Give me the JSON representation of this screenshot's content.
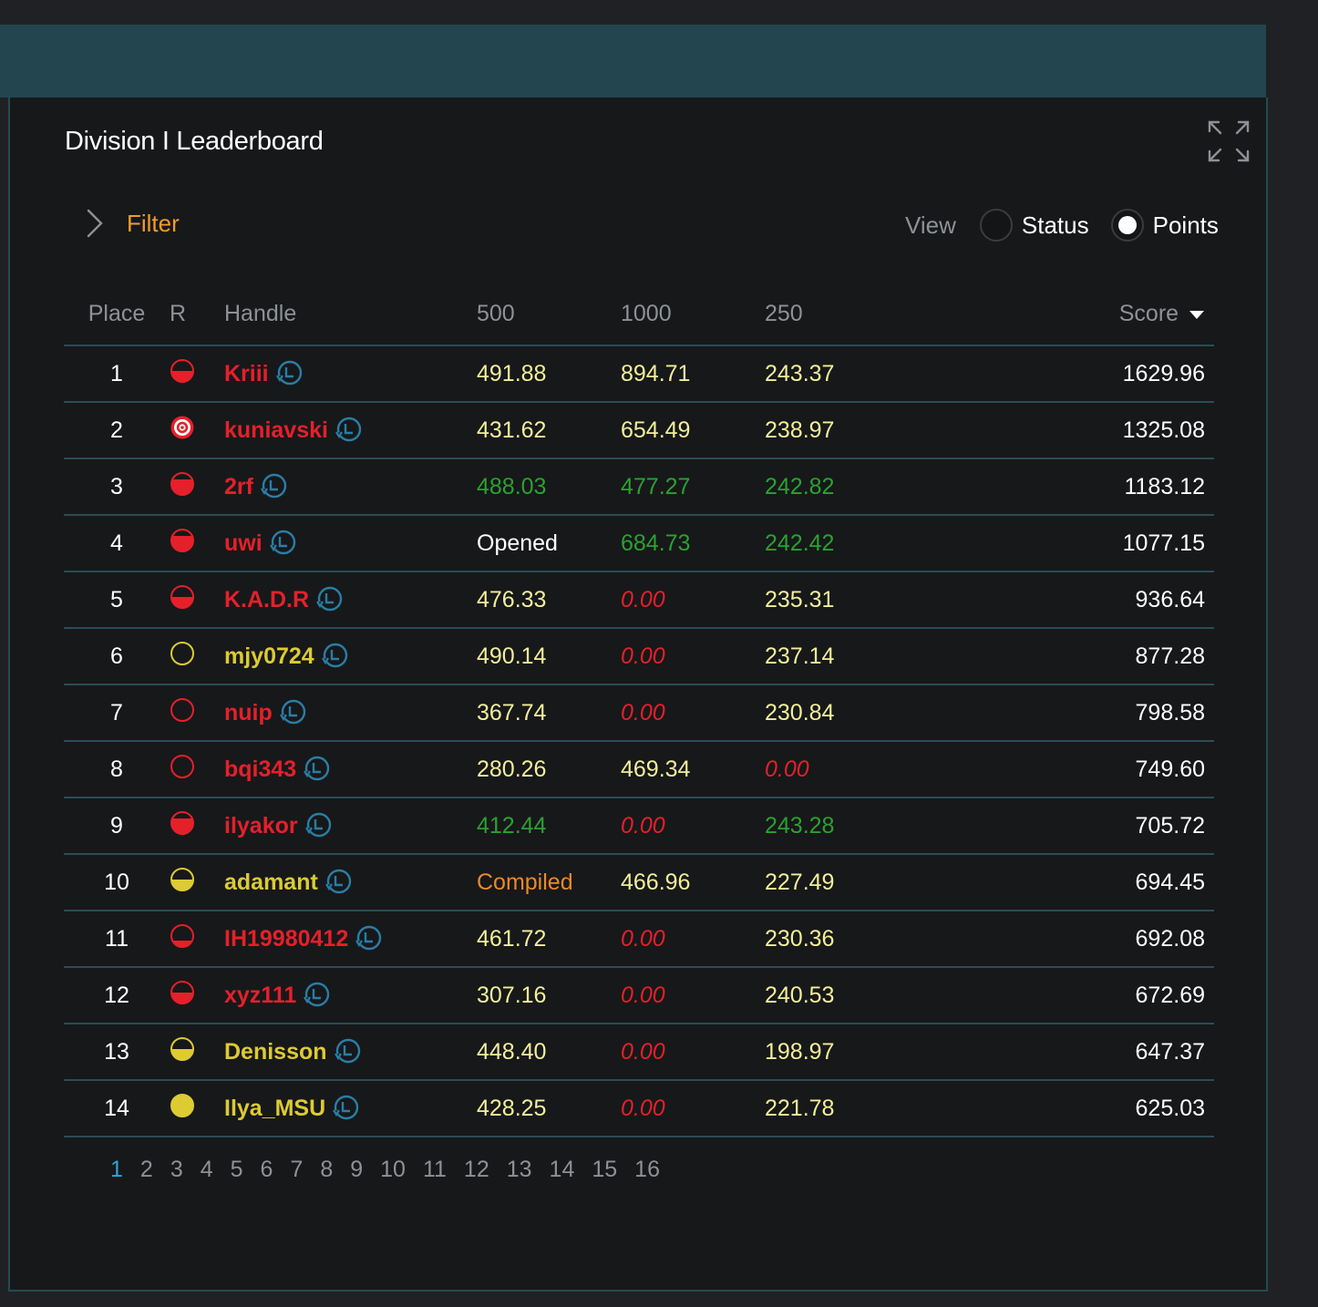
{
  "title": "Division I Leaderboard",
  "filter": {
    "label": "Filter"
  },
  "view": {
    "label": "View",
    "options": [
      {
        "label": "Status",
        "selected": false
      },
      {
        "label": "Points",
        "selected": true
      }
    ]
  },
  "table": {
    "headers": {
      "place": "Place",
      "rank": "R",
      "handle": "Handle",
      "p1": "500",
      "p2": "1000",
      "p3": "250",
      "score": "Score"
    },
    "rows": [
      {
        "place": "1",
        "rank": "red-half",
        "handle": "Kriii",
        "handle_color": "red",
        "p1": "491.88",
        "p1c": "pv",
        "p2": "894.71",
        "p2c": "pv",
        "p3": "243.37",
        "p3c": "pv",
        "score": "1629.96"
      },
      {
        "place": "2",
        "rank": "target",
        "handle": "kuniavski",
        "handle_color": "red",
        "p1": "431.62",
        "p1c": "pv",
        "p2": "654.49",
        "p2c": "pv",
        "p3": "238.97",
        "p3c": "pv",
        "score": "1325.08"
      },
      {
        "place": "3",
        "rank": "red-more",
        "handle": "2rf",
        "handle_color": "red",
        "p1": "488.03",
        "p1c": "green",
        "p2": "477.27",
        "p2c": "green",
        "p3": "242.82",
        "p3c": "green",
        "score": "1183.12"
      },
      {
        "place": "4",
        "rank": "red-more",
        "handle": "uwi",
        "handle_color": "red",
        "p1": "Opened",
        "p1c": "white",
        "p2": "684.73",
        "p2c": "green",
        "p3": "242.42",
        "p3c": "green",
        "score": "1077.15"
      },
      {
        "place": "5",
        "rank": "red-half",
        "handle": "K.A.D.R",
        "handle_color": "red",
        "p1": "476.33",
        "p1c": "pv",
        "p2": "0.00",
        "p2c": "zero",
        "p3": "235.31",
        "p3c": "pv",
        "score": "936.64"
      },
      {
        "place": "6",
        "rank": "yellow-empty",
        "handle": "mjy0724",
        "handle_color": "yellow",
        "p1": "490.14",
        "p1c": "pv",
        "p2": "0.00",
        "p2c": "zero",
        "p3": "237.14",
        "p3c": "pv",
        "score": "877.28"
      },
      {
        "place": "7",
        "rank": "red-empty",
        "handle": "nuip",
        "handle_color": "red",
        "p1": "367.74",
        "p1c": "pv",
        "p2": "0.00",
        "p2c": "zero",
        "p3": "230.84",
        "p3c": "pv",
        "score": "798.58"
      },
      {
        "place": "8",
        "rank": "red-empty",
        "handle": "bqi343",
        "handle_color": "red",
        "p1": "280.26",
        "p1c": "pv",
        "p2": "469.34",
        "p2c": "pv",
        "p3": "0.00",
        "p3c": "zero",
        "score": "749.60"
      },
      {
        "place": "9",
        "rank": "red-more",
        "handle": "ilyakor",
        "handle_color": "red",
        "p1": "412.44",
        "p1c": "green",
        "p2": "0.00",
        "p2c": "zero",
        "p3": "243.28",
        "p3c": "green",
        "score": "705.72"
      },
      {
        "place": "10",
        "rank": "yellow-half",
        "handle": "adamant",
        "handle_color": "yellow",
        "p1": "Compiled",
        "p1c": "orange",
        "p2": "466.96",
        "p2c": "pv",
        "p3": "227.49",
        "p3c": "pv",
        "score": "694.45"
      },
      {
        "place": "11",
        "rank": "red-low",
        "handle": "IH19980412",
        "handle_color": "red",
        "p1": "461.72",
        "p1c": "pv",
        "p2": "0.00",
        "p2c": "zero",
        "p3": "230.36",
        "p3c": "pv",
        "score": "692.08"
      },
      {
        "place": "12",
        "rank": "red-half",
        "handle": "xyz111",
        "handle_color": "red",
        "p1": "307.16",
        "p1c": "pv",
        "p2": "0.00",
        "p2c": "zero",
        "p3": "240.53",
        "p3c": "pv",
        "score": "672.69"
      },
      {
        "place": "13",
        "rank": "yellow-half",
        "handle": "Denisson",
        "handle_color": "yellow",
        "p1": "448.40",
        "p1c": "pv",
        "p2": "0.00",
        "p2c": "zero",
        "p3": "198.97",
        "p3c": "pv",
        "score": "647.37"
      },
      {
        "place": "14",
        "rank": "yellow-full",
        "handle": "Ilya_MSU",
        "handle_color": "yellow",
        "p1": "428.25",
        "p1c": "pv",
        "p2": "0.00",
        "p2c": "zero",
        "p3": "221.78",
        "p3c": "pv",
        "score": "625.03"
      }
    ]
  },
  "pagination": {
    "pages": [
      "1",
      "2",
      "3",
      "4",
      "5",
      "6",
      "7",
      "8",
      "9",
      "10",
      "11",
      "12",
      "13",
      "14",
      "15",
      "16"
    ],
    "current": "1"
  },
  "colors": {
    "red": "#e5202a",
    "yellow": "#dccb33",
    "green": "#2aa22f",
    "accent": "#2aa6dd",
    "filter": "#f39b2b"
  },
  "icons": {
    "expand": "expand-icon",
    "filter": "chevron-right-icon",
    "history": "history-clock-icon"
  }
}
